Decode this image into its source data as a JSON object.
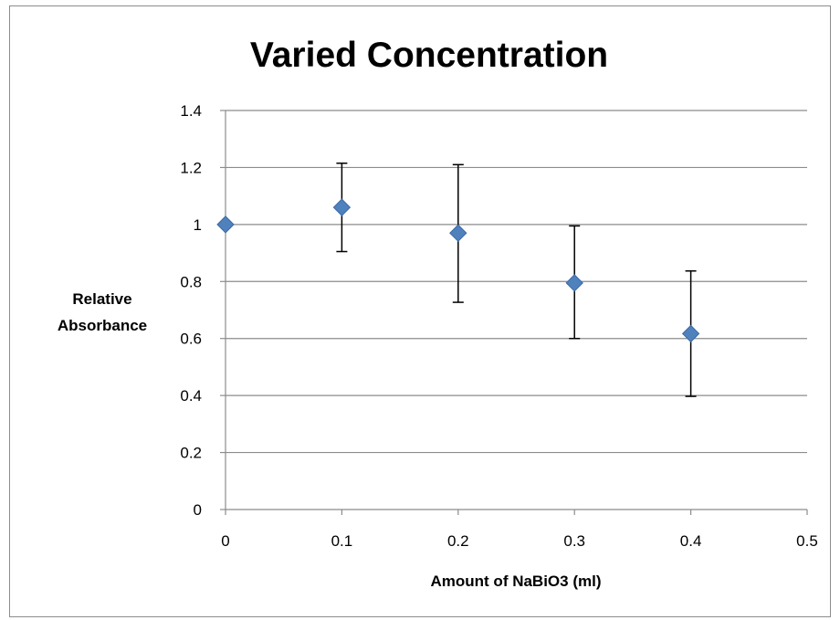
{
  "chart_data": {
    "type": "scatter",
    "title": "Varied Concentration",
    "xlabel": "Amount of NaBiO3 (ml)",
    "ylabel_lines": [
      "Relative",
      "Absorbance"
    ],
    "xlim": [
      0,
      0.5
    ],
    "ylim": [
      0,
      1.4
    ],
    "x_ticks": [
      0,
      0.1,
      0.2,
      0.3,
      0.4,
      0.5
    ],
    "x_tick_labels": [
      "0",
      "0.1",
      "0.2",
      "0.3",
      "0.4",
      "0.5"
    ],
    "y_ticks": [
      0,
      0.2,
      0.4,
      0.6,
      0.8,
      1.0,
      1.2,
      1.4
    ],
    "y_tick_labels": [
      "0",
      "0.2",
      "0.4",
      "0.6",
      "0.8",
      "1",
      "1.2",
      "1.4"
    ],
    "grid": "horizontal",
    "legend": "none",
    "marker": "diamond",
    "marker_color": "#4f81bd",
    "points": [
      {
        "x": 0.0,
        "y": 1.0
      },
      {
        "x": 0.1,
        "y": 1.06,
        "err_low": 0.905,
        "err_high": 1.215
      },
      {
        "x": 0.2,
        "y": 0.97,
        "err_low": 0.727,
        "err_high": 1.21
      },
      {
        "x": 0.3,
        "y": 0.795,
        "err_low": 0.6,
        "err_high": 0.995
      },
      {
        "x": 0.4,
        "y": 0.617,
        "err_low": 0.397,
        "err_high": 0.837
      }
    ]
  }
}
